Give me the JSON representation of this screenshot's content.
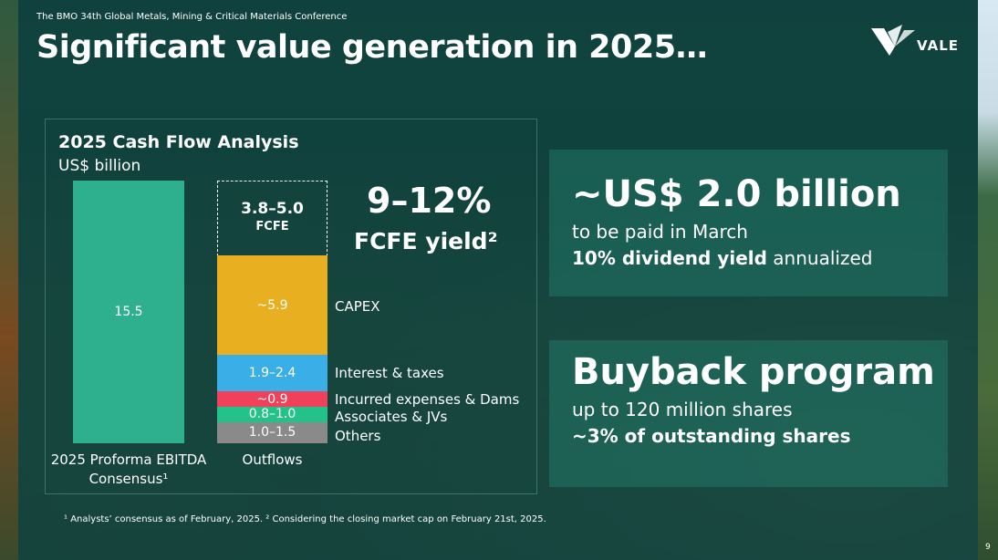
{
  "header": {
    "conference": "The BMO 34th Global Metals, Mining & Critical Materials Conference",
    "title": "Significant value generation in 2025…",
    "logo_text": "VALE"
  },
  "chart_data": {
    "type": "bar",
    "title": "2025 Cash Flow Analysis",
    "subtitle": "US$ billion",
    "categories": [
      "2025 Proforma EBITDA Consensus¹",
      "Outflows"
    ],
    "ebitda": {
      "value": 15.5,
      "label": "15.5",
      "color": "#2eb08e"
    },
    "outflows": [
      {
        "name": "Others",
        "value": 1.25,
        "label": "1.0–1.5",
        "color": "#8a8a8a"
      },
      {
        "name": "Associates & JVs",
        "value": 0.9,
        "label": "0.8–1.0",
        "color": "#22c28a"
      },
      {
        "name": "Incurred expenses & Dams",
        "value": 0.9,
        "label": "~0.9",
        "color": "#f0405a"
      },
      {
        "name": "Interest & taxes",
        "value": 2.15,
        "label": "1.9–2.4",
        "color": "#3aaee6"
      },
      {
        "name": "CAPEX",
        "value": 5.9,
        "label": "~5.9",
        "color": "#e8b020"
      },
      {
        "name": "FCFE",
        "value": 4.4,
        "label": "3.8–5.0",
        "color": "none"
      }
    ],
    "ylim": [
      0,
      15.5
    ]
  },
  "yield": {
    "value": "9–12%",
    "label": "FCFE yield²"
  },
  "dividend_card": {
    "headline": "~US$ 2.0 billion",
    "line1": "to be paid in March",
    "line2_bold": "10% dividend yield",
    "line2_rest": " annualized"
  },
  "buyback_card": {
    "headline": "Buyback program",
    "line1": "up to 120 million shares",
    "line2_bold": "~3% of outstanding shares"
  },
  "footnote": "¹ Analysts’ consensus as of February, 2025. ² Considering the closing market cap on February 21st, 2025.",
  "page_number": "9"
}
